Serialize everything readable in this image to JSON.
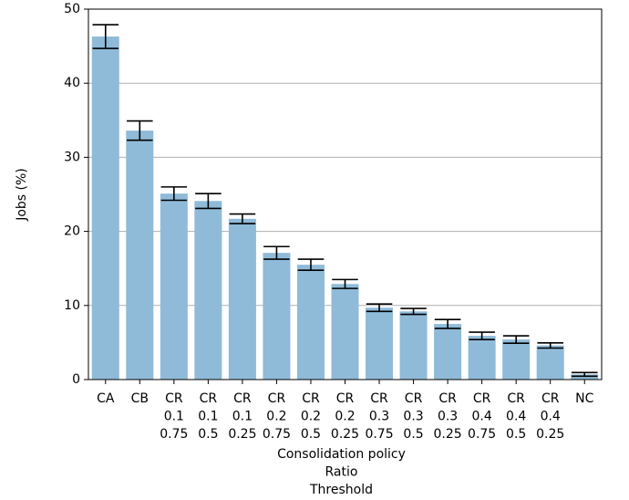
{
  "chart_data": {
    "type": "bar",
    "categories": [
      [
        "CA"
      ],
      [
        "CB"
      ],
      [
        "CR",
        "0.1",
        "0.75"
      ],
      [
        "CR",
        "0.1",
        "0.5"
      ],
      [
        "CR",
        "0.1",
        "0.25"
      ],
      [
        "CR",
        "0.2",
        "0.75"
      ],
      [
        "CR",
        "0.2",
        "0.5"
      ],
      [
        "CR",
        "0.2",
        "0.25"
      ],
      [
        "CR",
        "0.3",
        "0.75"
      ],
      [
        "CR",
        "0.3",
        "0.5"
      ],
      [
        "CR",
        "0.3",
        "0.25"
      ],
      [
        "CR",
        "0.4",
        "0.75"
      ],
      [
        "CR",
        "0.4",
        "0.5"
      ],
      [
        "CR",
        "0.4",
        "0.25"
      ],
      [
        "NC"
      ]
    ],
    "values": [
      46.3,
      33.6,
      25.1,
      24.1,
      21.7,
      17.1,
      15.5,
      12.9,
      9.7,
      9.2,
      7.5,
      5.9,
      5.4,
      4.6,
      0.7
    ],
    "errors": [
      1.6,
      1.3,
      0.9,
      1.0,
      0.65,
      0.85,
      0.75,
      0.6,
      0.5,
      0.4,
      0.6,
      0.5,
      0.5,
      0.35,
      0.25
    ],
    "color": "#8fbbd9",
    "error_color": "#000000",
    "xlabel": [
      "Consolidation policy",
      "Ratio",
      "Threshold"
    ],
    "ylabel": "Jobs (%)",
    "ylim": [
      0,
      50
    ],
    "yticks": [
      0,
      10,
      20,
      30,
      40,
      50
    ],
    "grid": true
  }
}
